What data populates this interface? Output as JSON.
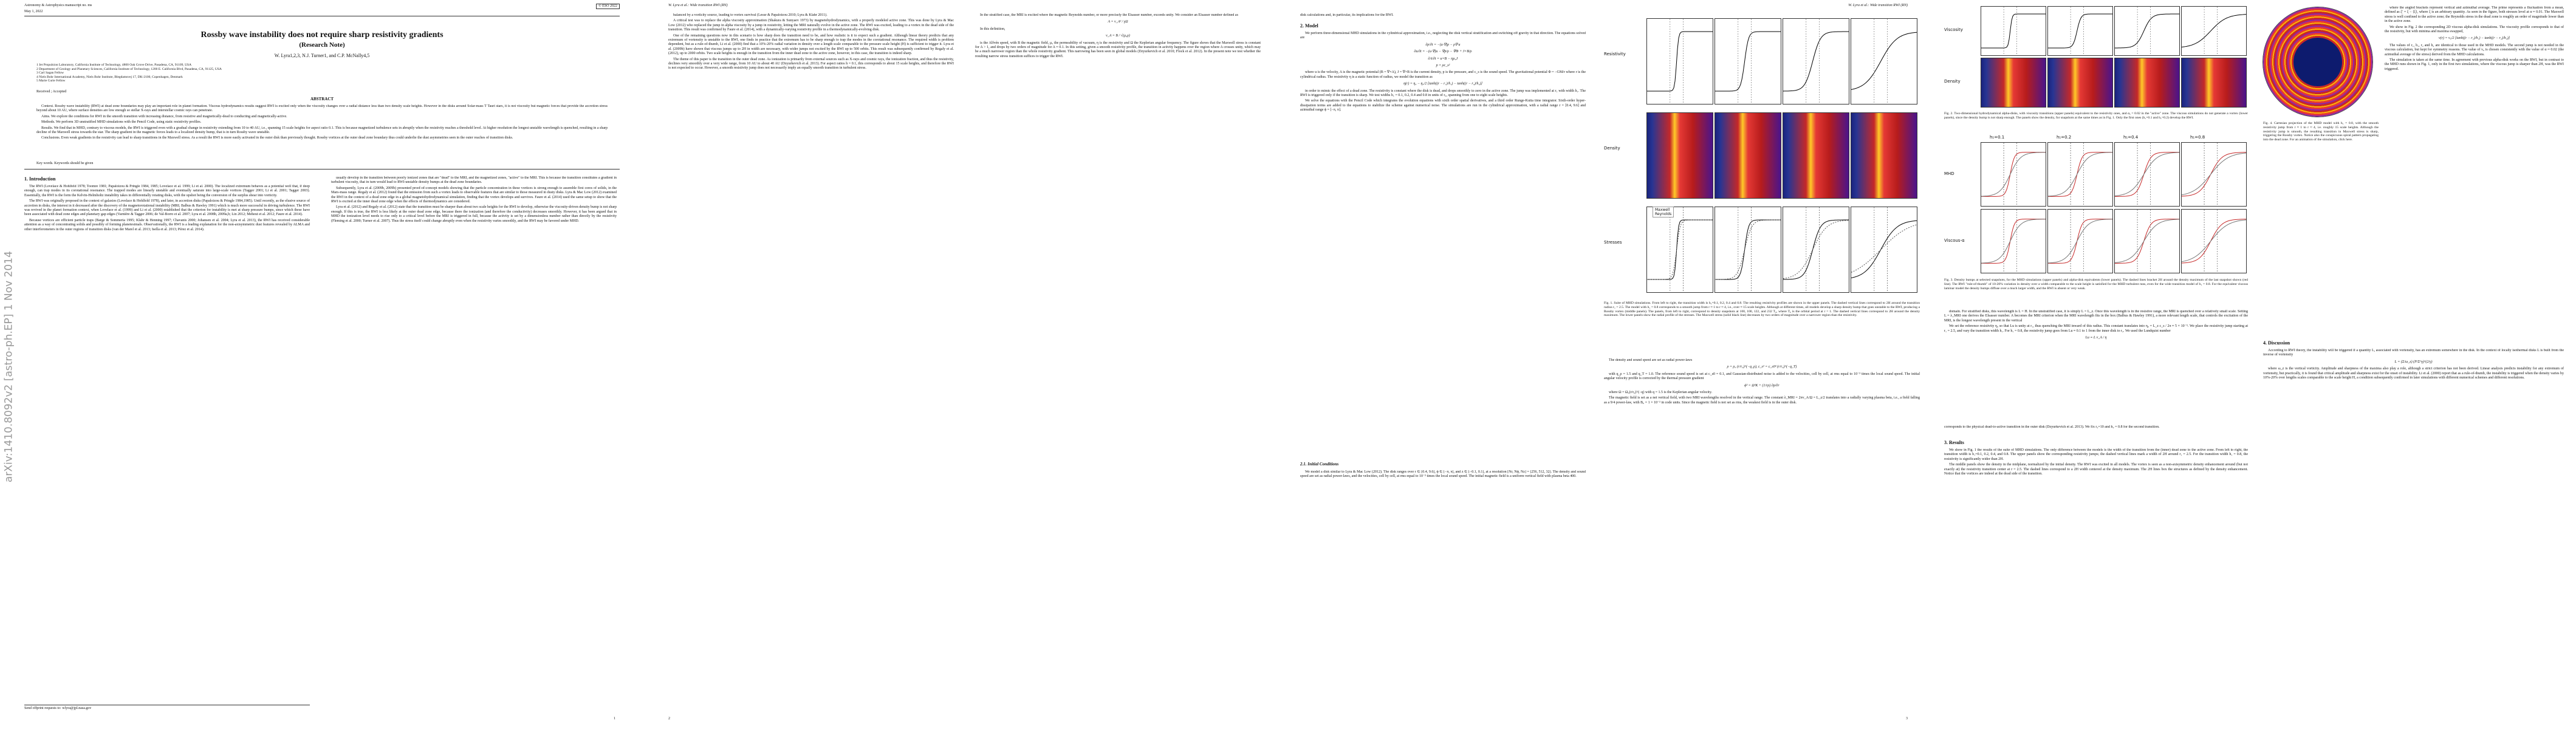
{
  "sidebar": "arXiv:1410.8092v2  [astro-ph.EP]  1 Nov 2014",
  "page1": {
    "journal": "Astronomy & Astrophysics manuscript no. ms",
    "copyright": "© ESO 2022",
    "date": "May 1, 2022",
    "title": "Rossby wave instability does not require sharp resistivity gradients",
    "subtitle": "(Research Note)",
    "authors": "W. Lyra1,2,3, N.J. Turner1, and C.P. McNally4,5",
    "affiliations": [
      "1 Jet Propulsion Laboratory, California Institute of Technology, 4800 Oak Grove Drive, Pasadena, CA, 91109, USA",
      "2 Department of Geology and Planetary Sciences, California Institute of Technology, 1200 E. California Blvd, Pasadena, CA, 91125, USA",
      "3 Carl Sagan Fellow",
      "4 Niels Bohr International Academy, Niels Bohr Institute, Blegdamsvej 17, DK-2100, Copenhagen, Denmark",
      "5 Marie Curie Fellow"
    ],
    "received": "Received ; Accepted",
    "abstract_heading": "ABSTRACT",
    "abstract": [
      "Context. Rossby wave instability (RWI) at dead zone boundaries may play an important role in planet formation. Viscous hydrodynamics results suggest RWI is excited only when the viscosity changes over a radial distance less than two density scale heights. However in the disks around Solar-mass T Tauri stars, it is not viscosity but magnetic forces that provide the accretion stress beyond about 10 AU, where surface densities are low enough so stellar X-rays and interstellar cosmic rays can penetrate.",
      "Aims. We explore the conditions for RWI in the smooth transition with increasing distance, from resistive and magnetically-dead to conducting and magnetically-active.",
      "Methods. We perform 3D unstratified MHD simulations with the Pencil Code, using static resistivity profiles.",
      "Results. We find that in MHD, contrary to viscous models, the RWI is triggered even with a gradual change in resistivity extending from 10 to 40 AU, i.e., spanning 15 scale heights for aspect ratio 0.1. This is because magnetized turbulence sets in abruptly when the resistivity reaches a threshold level. At higher resolution the longest unstable wavelength is quenched, resulting in a sharp decline of the Maxwell stress towards the star. The sharp gradient in the magnetic forces leads to a localized density bump, that is in turn Rossby wave unstable.",
      "Conclusions. Even weak gradients in the resistivity can lead to sharp transitions in the Maxwell stress. As a result the RWI is more easily activated in the outer disk than previously thought. Rossby vortices at the outer dead zone boundary thus could underlie the dust asymmetries seen in the outer reaches of transition disks."
    ],
    "keywords": "Key words. Keywords should be given",
    "intro_heading": "1. Introduction",
    "col1": [
      "The RWI (Lovelace & Hohlfeld 1978; Toomre 1981; Papaloizou & Pringle 1984, 1985; Lovelace et al. 1999; Li et al. 2000). The localized extremum behaves as a potential well that, if deep enough, can trap modes in its corotational resonance. The trapped modes are linearly unstable and eventually saturate into large-scale vortices (Tagger 2001; Li et al. 2001; Tagger 2003). Essentially, the RWI is the form the Kelvin-Helmholtz instability takes in differentially rotating disks, with the upshot being the conversion of the surplus shear into vorticity.",
      "The RWI was originally proposed in the context of galaxies (Lovelace & Hohlfeld 1978), and later, in accretion disks (Papaloizou & Pringle 1984,1985). Until recently, as the elusive source of accretion in disks, the interest in it decreased after the discovery of the magnetorotational instability (MRI; Balbus & Hawley 1991) which is much more successful in driving turbulence. The RWI was revived in the planet formation context, when Lovelace et al. (1999) and Li et al. (2000) established that the criterion for instability is met at sharp pressure bumps, since which these have been associated with dead zone edges and planetary gap edges (Varnière & Tagger 2006; de Val-Borro et al. 2007; Lyra et al. 2008b, 2009a,b; Lin 2012; Meheut et al. 2012; Faure et al. 2014).",
      "Because vortices are efficient particle traps (Barge & Sommeria 1995; Klahr & Henning 1997; Chavanis 2000; Johansen et al. 2004; Lyra et al. 2013), the RWI has received considerable attention as a way of concentrating solids and possibly of forming planetesimals. Observationally, the RWI is a leading explanation for the non-axisymmetric dust features revealed by ALMA and other interferometers in the outer regions of transition disks (van der Marel et al. 2013; Isella et al. 2013; Pérez et al. 2014)."
    ],
    "footnote": "Send offprint requests to: wlyra@jpl.nasa.gov",
    "col2": [
      "usually develop in the transition between poorly ionized zones that are \"dead\" to the MRI, and the magnetized zones, \"active\" to the MRI. This is because the transition constitutes a gradient in turbulent viscosity, that in turn would lead to RWI-unstable density bumps at the dead zone boundaries.",
      "Subsequently, Lyra et al. (2009b, 2009b) presented proof-of-concept models showing that the particle concentration in these vortices is strong enough to assemble first cores of solids, in the Mars-mass range. Regaly et al. (2012) found that the emission from such a vortex leads to observable features that are similar to those measured in dusty disks. Lyra & Mac Low (2012) examined the RWI in the context of a dead zone edge in a global magnetohydrodynamical simulation, finding that the vortex develops and survives. Faure et al. (2014) used the same setup to show that the RWI is excited at the inner dead zone edge when the effects of thermodynamics are considered.",
      "Lyra et al. (2012) and Regaly et al. (2012) state that the transition must be sharper than about two scale heights for the RWI to develop, otherwise the viscosity-driven density bump is not sharp enough. If this is true, the RWI is less likely at the outer dead zone edge, because there the ionization (and therefore the conductivity) decreases smoothly. However, it has been argued that in MHD the ionization level needs to rise only to a critical level before the MRI is triggered in full, because the activity is set by a dimensionless number rather than directly by the resistivity (Fleming et al. 2000; Turner et al. 2007). Thus the stress itself could change abruptly even when the resistivity varies smoothly, and the RWI may be favored under MHD."
    ],
    "page_number": "1"
  },
  "page2": {
    "running_head": "W. Lyra et al.: Wide transition RWI (RN)",
    "col1": [
      "balanced by a vorticity source, leading to vortex survival (Lesur & Papaloizou 2010; Lyra & Klahr 2011).",
      "A critical test was to replace the alpha viscosity approximation (Shakura & Sunyaev 1973) by magnetohydrodynamics, with a properly modeled active zone. This was done by Lyra & Mac Low (2012) who replaced the jump in alpha viscosity by a jump in resistivity, letting the MRI naturally evolve in the active zone. The RWI was excited, leading to a vortex in the dead side of the transition. This result was confirmed by Faure et al. (2014), with a dynamically-varying resistivity profile in a thermodynamically-evolving disk.",
      "One of the remaining questions now in this scenario is how sharp does the transition need to be, and how realistic is it to expect such a gradient. Although linear theory predicts that any extremum of vortensity is unstable to the RWI, one finds in practice that the extremum has to be sharp enough to trap the modes in the corotational resonance. The required width is problem dependent, but as a rule-of-thumb, Li et al. (2000) find that a 10%-20% radial variation in density over a length scale comparable to the pressure scale height (H) is sufficient to trigger it. Lyra et al. (2009b) have shown that viscous jumps up to 2H in width are necessary, with wider jumps not excited by the RWI up to 500 orbits. This result was subsequently confirmed by Regaly et al. (2012), up to 2000 orbits. Two scale heights is enough in the transition from the inner dead zone to the active zone, however, in this case, the transition is indeed sharp.",
      "The theme of this paper is the transition in the outer dead zone. As ionization is primarily from external sources such as X-rays and cosmic rays, the ionization fraction, and thus the resistivity, declines very smoothly over a very wide range, from 10 AU to about 40 AU (Dzyurkevich et al. 2013). For aspect ratios h = 0.1, this corresponds to about 15 scale heights, and therefore the RWI is not expected to occur. However, a smooth resistivity jump does not necessarily imply an equally smooth transition in turbulent stress."
    ],
    "col2": [
      "In the stratified case, the MRI is excited where the magnetic Reynolds number, or more precisely the Elsasser number, exceeds unity. We consider an Elsasser number defined as",
      "A = v_A² / γΩ",
      "In this definition,",
      "v_A = B / √(μ₀ρ)",
      "is the Alfvén speed, with B the magnetic field, μ₀ the permeability of vacuum, η is the resistivity and Ω the Keplerian angular frequency. The figure shows that the Maxwell stress is constant for A > 1, and drops by two orders of magnitude for A ≈ 0.1. In this setting, given a smooth resistivity profile, the transition in activity happens over the region where A crosses unity, which may be a much narrower region than the whole resistivity gradient. This narrowing has been seen in global models (Dzyurkevich et al. 2010; Flock et al. 2012). In the present note we test whether the resulting narrow stress transition suffices to trigger the RWI."
    ],
    "page_number": "2"
  },
  "page3": {
    "running_head": "W. Lyra et al.: Wide transition RWI (RN)",
    "col1_start": "disk calculations and, in particular, its implications for the RWI.",
    "model_heading": "2. Model",
    "col1": [
      "We perform three-dimensional MHD simulations in the cylindrical approximation, i.e., neglecting the disk vertical stratification and switching off gravity in that direction. The equations solved are",
      "∂ρ/∂t = −(u·∇)ρ − ρ∇·u",
      "∂u/∂t = −(u·∇)u − ∇p/ρ − ∇Φ + J×B/ρ",
      "∂A/∂t = u×B − ηµ₀J",
      "p = ρc_s²",
      "where u is the velocity, A is the magnetic potential (B = ∇×A), J = ∇×B is the current density, p is the pressure, and c_s is the sound speed. The gravitational potential Φ = −GM/r where r is the cylindrical radius. The resistivity η is a static function of radius, we model the transition as",
      "η(r) = η₀ − η₀/2 [tanh((r − r₁)/h₁) − tanh((r − r₂)/h₂)]",
      "in order to mimic the effect of a dead zone. The resistivity is constant where the disk is dead, and drops smoothly to zero in the active zone. The jump was implemented at r₁ with width h₁. The RWI is triggered only if the transition is sharp. We test widths h₁ = 0.1, 0.2, 0.4 and 0.8 in units of r₀, spanning from one to eight scale heights.",
      "We solve the equations with the Pencil Code which integrates the evolution equations with sixth order spatial derivatives, and a third order Runge-Kutta time integrator. Sixth-order hyper-dissipation terms are added to the equations to stabilize the scheme against numerical noise. The simulations are run in the cylindrical approximation, with a radial range r = [0.4, 9.6] and azimuthal range ϕ = [−π, π]."
    ],
    "ic_heading": "2.1. Initial Conditions",
    "col1b": [
      "We model a disk similar to Lyra & Mac Low (2012). The disk ranges over r ∈ [0.4, 9.6], ϕ ∈ [−π, π], and z ∈ [−0.1, 0.1], at a resolution [Nr, Nϕ, Nz] = [256, 512, 32]. The density and sound speed are set as radial power-laws, and the velocities, cell by cell, at rms equal to 10⁻³ times the local sound speed. The initial magnetic field is a uniform vertical field with plasma beta 400."
    ],
    "figure": {
      "rows": [
        "Resistivity",
        "Density",
        "Stresses"
      ],
      "legend": [
        "Maxwell",
        "Reynolds"
      ]
    },
    "caption": "Fig. 1. Suite of MHD simulations. From left to right, the transition width is h₁=0.1, 0.2, 0.4 and 0.8. The resulting resistivity profiles are shown in the upper panels. The dashed vertical lines correspond to 2H around the transition radius r₁ = 2.5. The model with h₁ = 0.8 corresponds to a smooth jump from r ≈ 1 to r ≈ 4, i.e., over ≈ 15 scale heights. Although at different times, all models develop a sharp density bump that goes unstable to the RWI, producing a Rossby vortex (middle panels). The panels, from left to right, correspond to density snapshots at 100, 100, 122, and 232 T₀, where T₀ is the orbital period at r = 1. The dashed vertical lines correspond to 2H around the density maximum. The lower panels show the radial profile of the stresses. The Maxwell stress (solid black line) decreases by two orders of magnitude over a narrower region than the resistivity.",
    "col2": [
      "The density and sound speed are set as radial power-laws",
      "ρ = ρ₀ (r/r₀)^(−q_ρ),   c_s² = c_s0² (r/r₀)^(−q_T)",
      "with q_ρ = 1.5 and q_T = 1.0. The reference sound speed is set at c_s0 = 0.1, and Gaussian-distributed noise is added to the velocities, cell by cell, at rms equal to 10⁻³ times the local sound speed. The initial angular velocity profile is corrected by the thermal pressure gradient",
      "ϕ̇² = Ω²K + (1/rρ) ∂p/∂r",
      "where Ω = Ω₀(r/r₀)^(−q) with q = 1.5 is the Keplerian angular velocity.",
      "The magnetic field is set as a net vertical field, with two MRI wavelengths resolved in the vertical range. The constant λ_MRI = 2πv_A/Ω = L_z/2 translates into a radially varying plasma beta, i.e., a field falling as a 9/4 power-law, with B₀ = 1 × 10⁻² in code units. Since the magnetic field is not set as rms, the weakest field is in the outer disk."
    ],
    "page_number": "3"
  },
  "page4": {
    "fig2_rows": [
      "Viscosity",
      "Density"
    ],
    "fig2_caption": "Fig. 2. Two-dimensional hydrodynamical alpha-disks, with viscosity transitions (upper panels) equivalent to the resistivity ones, and αₐ = 0.02 in the \"active\" zone. The viscous simulations do not generate a vortex (lower panels), since the density bump is not sharp enough. The panels show the density, for snapshots at the same times as in Fig. 1. Only the first ones (h₁=0.1 and h₁=0.2) develop the RWI.",
    "fig3_titles": [
      "h₁=0.1",
      "h₁=0.2",
      "h₁=0.4",
      "h₁=0.8"
    ],
    "fig3_rows": [
      "MHD",
      "Viscous-α"
    ],
    "fig3_caption": "Fig. 3. Density bumps at selected snapshots, for the MHD simulations (upper panels) and alpha-disk equivalents (lower panels). The dashed lines bracket 2H around the density maximum of the last snapshot shown (red line). The RWI \"rule-of-thumb\" of 10-20% variation in density over a width comparable to the scale height is satisfied for the MHD turbulent runs, even for the wide transition model of h₁ = 0.8. For the equivalent viscous laminar model the density bumps diffuse over a much larger width, and the RWI is absent or very weak.",
    "col1": [
      "domain. For stratified disks, this wavelength is L = H. In the unstratified case, it is simply L = L_z. Once this wavelength is in the resistive range, the MRI is quenched over a relatively small scale. Setting L = λ_MRI one derives the Elsasser number. A becomes the MRI criterion when the MRI wavelength fits in the box (Balbus & Hawley 1991), a more relevant length scale, that controls the excitation of the MRI, is the longest wavelength present in the vertical",
      "We set the reference resistivity η₀ so that Lu is unity at r₁, thus quenching the MRI inward of this radius. This constant translates into η₀ = L_z c_s / 2π ≈ 5 × 10⁻⁵. We place the resistivity jump starting at r₁ = 2.5, and vary the transition width h₁. For h₁ = 0.8, the resistivity jump goes from Lu ≈ 0.1 to 1 from the inner disk to r₂. We used the Lundquist number",
      "Lu ≡ L v_A / η"
    ],
    "fig4_caption": "Fig. 4. Cartesian projection of the MHD model with h₁ = 0.8, with the smooth resistivity jump from r ≈ 1 to r ≈ 4, i.e. roughly 15 scale heights. Although the resistivity jump is smooth, the resulting transition in Maxwell stress is sharp, triggering the Rossby vortex. Notice also the conspicuous spiral pattern propagating into the dead zone. For an animation of the simulation, click here.",
    "col2a": [
      "where the angled brackets represent vertical and azimuthal average. The prime represents a fluctuation from a mean, defined as ξ′ = ξ − ⟨ξ⟩, where ξ is an arbitrary quantity. As seen in the figure, both stresses level at α ≈ 0.01. The Maxwell stress is well confined to the active zone; the Reynolds stress in the dead zone is roughly an order of magnitude lower than in the active zone.",
      "We show in Fig. 2 the corresponding 2D viscous alpha-disk simulations. The viscosity profile corresponds to that of the resistivity, but with minima and maxima swapped,",
      "ν(r) = ν₀/2 [tanh((r − r₁)/h₁) − tanh((r − r₂)/h₂)]",
      "The values of r₁, h₁, r₂ and h₂ are identical to those used in the MHD models. The second jump is not needed in the viscous calculation, but kept for symmetry reasons. The value of ν₀ is chosen consistently with the value of α ≈ 0.02 (the azimuthal average of the stress) derived from the MHD calculations.",
      "The simulation is taken at the same time. In agreement with previous alpha-disk works on the RWI, but in contrast to the MHD runs shown in Fig. 1, only in the first two simulations, where the viscous jump is sharper than 2H, was the RWI triggered."
    ],
    "discussion_heading": "4. Discussion",
    "col2b": [
      "According to RWI theory, the instability will be triggered if a quantity L, associated with vortensity, has an extremum somewhere in the disk. In the context of locally isothermal disks L is built from the inverse of vortensity",
      "L = (Σ/ω_z) (P/Σ^γ)^(2/γ)",
      "where ω_z is the vertical vorticity. Amplitude and sharpness of the maxima also play a role, although a strict criterion has not been derived. Linear analysis predicts instability for any extremum of vortensity, but practically, it is found that critical amplitude and sharpness exist for the onset of instability. Li et al. (2000) report that as a rule-of-thumb, the instability is triggered when the density varies by 10%-20% over lengths scales comparable to the scale height H, a condition subsequently confirmed in later simulations with different numerical schemes and different resolutions."
    ],
    "col1c_start": "corresponds to the physical dead-to-active transition in the outer disk (Dzyurkevich et al. 2013). We fix r₂=10 and h₂ = 0.8 for the second transition.",
    "results_heading": "3. Results",
    "col1c": [
      "We show in Fig. 1 the results of the suite of MHD simulations. The only difference between the models is the width of the transition from the (inner) dead zone to the active zone. From left to right, the transition width is h₁=0.1, 0.2, 0.4, and 0.8. The upper panels show the corresponding resistivity jumps; the dashed vertical lines mark a width of 2H around r₁ = 2.5. For the transition width h₁ = 0.8, the resistivity is significantly wider than 2H.",
      "The middle panels show the density in the midplane, normalized by the initial density. The RWI was excited in all models. The vortex is seen as a non-axisymmetric density enhancement around (but not exactly at) the resistivity transition center at r = 2.5. The dashed lines correspond to a 2H width centered at the density maximum. The 2H lines box the structures as defined by the density enhancement. Notice that the vortices are indeed at the dead side of the transition."
    ]
  }
}
